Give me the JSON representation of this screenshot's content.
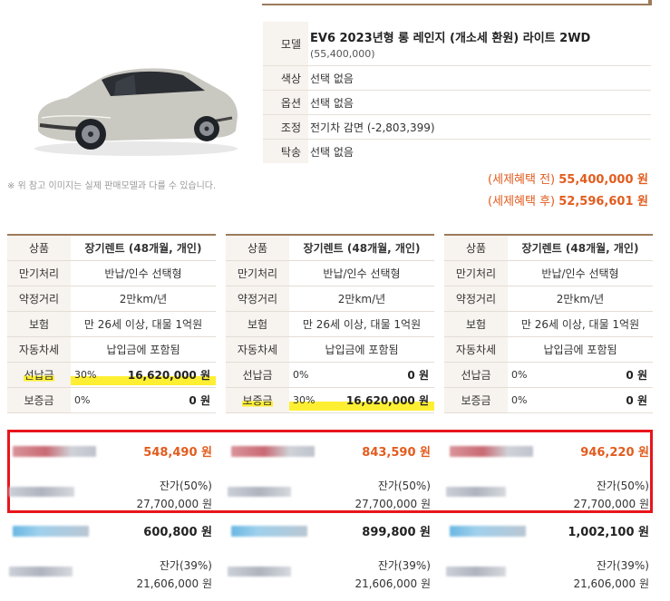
{
  "car": {
    "image_alt": "Kia EV6 (silver)",
    "image_note": "※ 위 참고 이미지는 실제 판매모델과 다를 수 있습니다."
  },
  "spec": {
    "model_label": "모델",
    "model_value": "EV6 2023년형 롱 레인지 (개소세 환원) 라이트 2WD",
    "model_price": "(55,400,000)",
    "color_label": "색상",
    "color_value": "선택 없음",
    "option_label": "옵션",
    "option_value": "선택 없음",
    "adjust_label": "조정",
    "adjust_value": "전기차 감면 (-2,803,399)",
    "consign_label": "탁송",
    "consign_value": "선택 없음"
  },
  "tax": {
    "before_label": "(세제혜택 전)",
    "before_value": "55,400,000 원",
    "after_label": "(세제혜택 후)",
    "after_value": "52,596,601 원"
  },
  "labels": {
    "product": "상품",
    "maturity": "만기처리",
    "mileage": "약정거리",
    "insurance": "보험",
    "car_tax": "자동차세",
    "prepay": "선납금",
    "deposit": "보증금"
  },
  "options": [
    {
      "product": "장기렌트 (48개월, 개인)",
      "maturity": "반납/인수 선택형",
      "mileage": "2만km/년",
      "insurance": "만 26세 이상, 대물 1억원",
      "car_tax": "납입금에 포함됨",
      "prepay_pct": "30%",
      "prepay_amt": "16,620,000 원",
      "deposit_pct": "0%",
      "deposit_amt": "0 원"
    },
    {
      "product": "장기렌트 (48개월, 개인)",
      "maturity": "반납/인수 선택형",
      "mileage": "2만km/년",
      "insurance": "만 26세 이상, 대물 1억원",
      "car_tax": "납입금에 포함됨",
      "prepay_pct": "0%",
      "prepay_amt": "0 원",
      "deposit_pct": "30%",
      "deposit_amt": "16,620,000 원"
    },
    {
      "product": "장기렌트 (48개월, 개인)",
      "maturity": "반납/인수 선택형",
      "mileage": "2만km/년",
      "insurance": "만 26세 이상, 대물 1억원",
      "car_tax": "납입금에 포함됨",
      "prepay_pct": "0%",
      "prepay_amt": "0 원",
      "deposit_pct": "0%",
      "deposit_amt": "0 원"
    }
  ],
  "quotes_top": [
    {
      "price": "548,490 원",
      "residual_label": "잔가(50%)",
      "residual_value": "27,700,000 원"
    },
    {
      "price": "843,590 원",
      "residual_label": "잔가(50%)",
      "residual_value": "27,700,000 원"
    },
    {
      "price": "946,220 원",
      "residual_label": "잔가(50%)",
      "residual_value": "27,700,000 원"
    }
  ],
  "quotes_bottom": [
    {
      "price": "600,800 원",
      "residual_label": "잔가(39%)",
      "residual_value": "21,606,000 원"
    },
    {
      "price": "899,800 원",
      "residual_label": "잔가(39%)",
      "residual_value": "21,606,000 원"
    },
    {
      "price": "1,002,100 원",
      "residual_label": "잔가(39%)",
      "residual_value": "21,606,000 원"
    }
  ],
  "colors": {
    "accent_brown": "#9c7b5b",
    "price_orange": "#e25c1e",
    "highlight_yellow": "#ffef33",
    "focus_red": "#e8151b"
  }
}
